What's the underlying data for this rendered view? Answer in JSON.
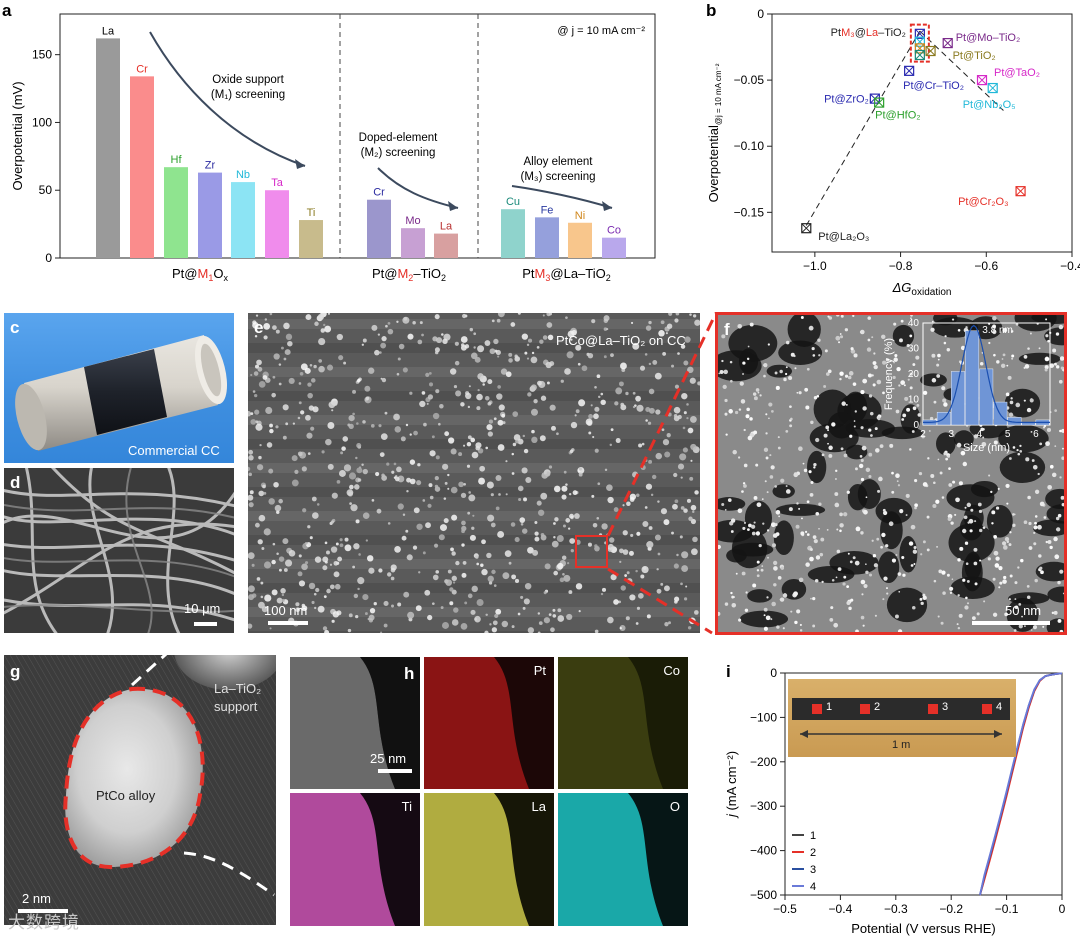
{
  "panels": {
    "a": "a",
    "b": "b",
    "c": "c",
    "d": "d",
    "e": "e",
    "f": "f",
    "g": "g",
    "h": "h",
    "i": "i"
  },
  "colors": {
    "La": "#9a9a9a",
    "Cr": "#fa8c8c",
    "Hf": "#8fe48f",
    "Zr": "#9a9ae6",
    "Nb": "#8ce4f4",
    "Ta": "#f08cec",
    "Ti": "#c8bb8c",
    "Cr2": "#9b96cc",
    "Mo": "#c7a0d3",
    "La2": "#d8a0a0",
    "Cu": "#8fd3cc",
    "Fe": "#95a0dc",
    "Ni": "#f8c68c",
    "Co": "#b9a8ec",
    "red_accent": "#e53028",
    "arrow": "#3c4a5e"
  },
  "chart_data": [
    {
      "type": "bar",
      "panel": "a",
      "ylabel": "Overpotential (mV)",
      "ylim": [
        0,
        180
      ],
      "yticks": [
        "0",
        "50",
        "100",
        "150"
      ],
      "annotation": "@ j = 10 mA cm⁻²",
      "groups": [
        {
          "label": "Pt@M₁Oₓ",
          "label_parts": [
            "Pt@",
            "M",
            "1",
            "O",
            "x"
          ],
          "note": [
            "Oxide support",
            "(M₁) screening"
          ],
          "bars": [
            {
              "name": "La",
              "value": 162,
              "color": "#9a9a9a",
              "label_color": "#000000"
            },
            {
              "name": "Cr",
              "value": 134,
              "color": "#fa8c8c",
              "label_color": "#e53028"
            },
            {
              "name": "Hf",
              "value": 67,
              "color": "#8fe48f",
              "label_color": "#2ca02c"
            },
            {
              "name": "Zr",
              "value": 63,
              "color": "#9a9ae6",
              "label_color": "#2a2aa0"
            },
            {
              "name": "Nb",
              "value": 56,
              "color": "#8ce4f4",
              "label_color": "#21b8d8"
            },
            {
              "name": "Ta",
              "value": 50,
              "color": "#f08cec",
              "label_color": "#d628c8"
            },
            {
              "name": "Ti",
              "value": 28,
              "color": "#c8bb8c",
              "label_color": "#8a7a20"
            }
          ]
        },
        {
          "label": "Pt@M₂–TiO₂",
          "label_parts": [
            "Pt@",
            "M",
            "2",
            "–TiO",
            "2"
          ],
          "note": [
            "Doped-element",
            "(M₂) screening"
          ],
          "bars": [
            {
              "name": "Cr",
              "value": 43,
              "color": "#9b96cc",
              "label_color": "#2a2aa0"
            },
            {
              "name": "Mo",
              "value": 22,
              "color": "#c7a0d3",
              "label_color": "#7a2a8a"
            },
            {
              "name": "La",
              "value": 18,
              "color": "#d8a0a0",
              "label_color": "#b83030"
            }
          ]
        },
        {
          "label": "PtM₃@La–TiO₂",
          "label_parts": [
            "Pt",
            "M",
            "3",
            "@La–TiO",
            "2"
          ],
          "note": [
            "Alloy element",
            "(M₃) screening"
          ],
          "bars": [
            {
              "name": "Cu",
              "value": 36,
              "color": "#8fd3cc",
              "label_color": "#1a8a7a"
            },
            {
              "name": "Fe",
              "value": 30,
              "color": "#95a0dc",
              "label_color": "#2a3aa0"
            },
            {
              "name": "Ni",
              "value": 26,
              "color": "#f8c68c",
              "label_color": "#d0861a"
            },
            {
              "name": "Co",
              "value": 15,
              "color": "#b9a8ec",
              "label_color": "#7a2ab0"
            }
          ]
        }
      ]
    },
    {
      "type": "scatter",
      "panel": "b",
      "xlabel": "ΔG",
      "xlabel_sub": "oxidation",
      "ylabel": "Overpotential",
      "ylabel_sub": "@j = 10 mA cm⁻²",
      "xlim": [
        -1.1,
        -0.4
      ],
      "ylim": [
        -0.18,
        0
      ],
      "xticks": [
        -1.0,
        -0.8,
        -0.6,
        -0.4
      ],
      "xtick_labels": [
        "−1.0",
        "−0.8",
        "−0.6",
        "−0.4"
      ],
      "yticks": [
        0,
        -0.05,
        -0.1,
        -0.15
      ],
      "ytick_labels": [
        "0",
        "−0.05",
        "−0.10",
        "−0.15"
      ],
      "points": [
        {
          "label": "Pt@La₂O₃",
          "x": -1.02,
          "y": -0.162,
          "color": "#222222"
        },
        {
          "label": "Pt@ZrO₂",
          "x": -0.86,
          "y": -0.064,
          "color": "#2a2ab0"
        },
        {
          "label": "Pt@HfO₂",
          "x": -0.85,
          "y": -0.067,
          "color": "#2ca02c"
        },
        {
          "label": "Pt@Cr–TiO₂",
          "x": -0.78,
          "y": -0.043,
          "color": "#2a2ab0"
        },
        {
          "label": "PtM₃@La–TiO₂",
          "x": -0.755,
          "y": -0.015,
          "color": "#2a2ab0"
        },
        {
          "label": "",
          "x": -0.755,
          "y": -0.021,
          "color": "#21b8d8"
        },
        {
          "label": "",
          "x": -0.755,
          "y": -0.026,
          "color": "#d0861a"
        },
        {
          "label": "",
          "x": -0.755,
          "y": -0.031,
          "color": "#1a8a7a"
        },
        {
          "label": "Pt@TiO₂",
          "x": -0.73,
          "y": -0.028,
          "color": "#8a7a20"
        },
        {
          "label": "Pt@Mo–TiO₂",
          "x": -0.69,
          "y": -0.022,
          "color": "#7a2a8a"
        },
        {
          "label": "Pt@TaO₂",
          "x": -0.61,
          "y": -0.05,
          "color": "#d628c8"
        },
        {
          "label": "Pt@Nb₂O₅",
          "x": -0.585,
          "y": -0.056,
          "color": "#21b8d8"
        },
        {
          "label": "Pt@Cr₂O₃",
          "x": -0.52,
          "y": -0.134,
          "color": "#e53028"
        }
      ]
    },
    {
      "type": "line",
      "panel": "i",
      "xlabel": "Potential (V versus RHE)",
      "ylabel": "j (mA cm⁻²)",
      "xlim": [
        -0.5,
        0
      ],
      "ylim": [
        -500,
        0
      ],
      "xticks": [
        "−0.5",
        "−0.4",
        "−0.3",
        "−0.2",
        "−0.1",
        "0"
      ],
      "yticks": [
        "0",
        "−100",
        "−200",
        "−300",
        "−400",
        "−500"
      ],
      "x": [
        -0.148,
        -0.14,
        -0.13,
        -0.12,
        -0.11,
        -0.1,
        -0.09,
        -0.08,
        -0.07,
        -0.06,
        -0.05,
        -0.04,
        -0.03,
        -0.02,
        -0.01,
        0
      ],
      "series": [
        {
          "name": "1",
          "color": "#444444",
          "values": [
            -500,
            -462,
            -416,
            -370,
            -322,
            -273,
            -222,
            -170,
            -120,
            -76,
            -40,
            -17,
            -7,
            -4,
            -2,
            -1
          ]
        },
        {
          "name": "2",
          "color": "#e53028",
          "values": [
            -500,
            -465,
            -420,
            -374,
            -326,
            -277,
            -226,
            -174,
            -123,
            -78,
            -41,
            -18,
            -7,
            -4,
            -2,
            -1
          ]
        },
        {
          "name": "3",
          "color": "#2a4fa0",
          "values": [
            -500,
            -458,
            -412,
            -366,
            -318,
            -269,
            -218,
            -166,
            -117,
            -73,
            -38,
            -16,
            -7,
            -4,
            -2,
            -1
          ]
        },
        {
          "name": "4",
          "color": "#6a7ad8",
          "values": [
            -500,
            -455,
            -409,
            -363,
            -315,
            -266,
            -215,
            -164,
            -115,
            -72,
            -37,
            -16,
            -7,
            -4,
            -2,
            -1
          ]
        }
      ]
    }
  ],
  "micrographs": {
    "c_caption": "Commercial CC",
    "d_scale": "10 μm",
    "e_title": "PtCo@La–TiO₂ on CC",
    "e_scale": "100 nm",
    "f_scale": "50 nm",
    "f_inset": {
      "type": "bar",
      "xlabel": "Size (nm)",
      "ylabel": "Frequency (%)",
      "xticks": [
        "2",
        "3",
        "4",
        "5",
        "6"
      ],
      "yticks": [
        "0",
        "10",
        "20",
        "30",
        "40"
      ],
      "annotation": "3.8 nm",
      "x": [
        2.25,
        2.75,
        3.25,
        3.75,
        4.25,
        4.75,
        5.25,
        5.75,
        6.25
      ],
      "values": [
        2,
        5,
        21,
        37,
        22,
        9,
        3,
        1,
        2
      ]
    },
    "g_support": [
      "La–TiO₂",
      "support"
    ],
    "g_particle": "PtCo alloy",
    "g_scale": "2 nm",
    "h_scale": "25 nm",
    "h_maps": [
      "",
      "Pt",
      "Co",
      "Ti",
      "La",
      "O"
    ],
    "i_markers": [
      "1",
      "2",
      "3",
      "4"
    ],
    "i_length": "1 m"
  },
  "watermark": "大数跨境"
}
